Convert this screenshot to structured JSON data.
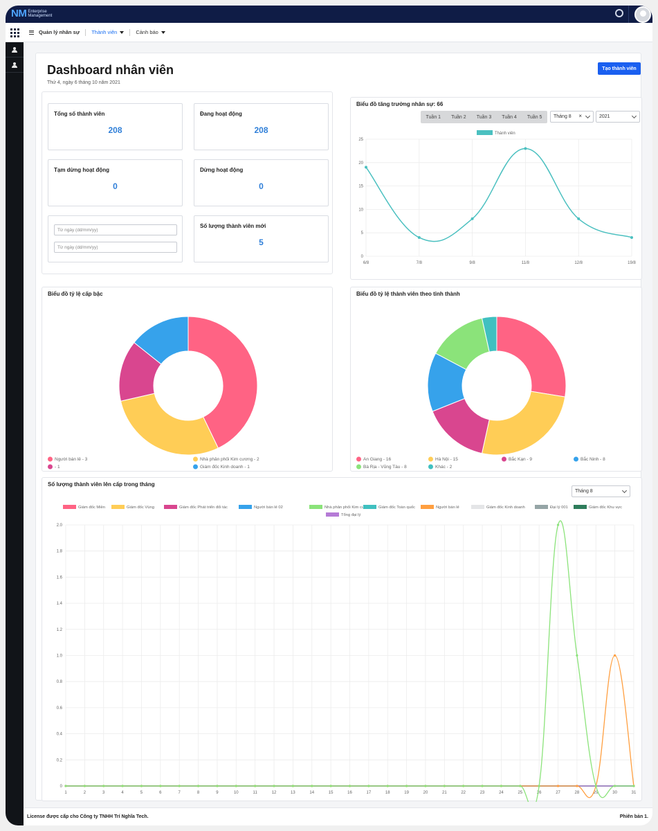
{
  "header": {
    "logo_mark": "NM",
    "logo_line1": "Enterprise",
    "logo_line2": "Management"
  },
  "subnav": {
    "items": [
      {
        "label": "Quản lý nhân sự"
      },
      {
        "label": "Thành viên"
      },
      {
        "label": "Cảnh báo"
      }
    ]
  },
  "page": {
    "title": "Dashboard nhân viên",
    "date": "Thứ 4, ngày 6 tháng 10 năm 2021",
    "create_button": "Tạo thành viên"
  },
  "stats": [
    {
      "label": "Tổng số thành viên",
      "value": "208"
    },
    {
      "label": "Đang hoạt động",
      "value": "208"
    },
    {
      "label": "Tạm dừng hoạt động",
      "value": "0"
    },
    {
      "label": "Dừng hoạt động",
      "value": "0"
    },
    {
      "label": "Số lượng thành viên mới",
      "value": "5"
    }
  ],
  "date_filter": {
    "from_placeholder": "Từ ngày (dd/mm/yy)",
    "to_placeholder": "Từ ngày (dd/mm/yy)"
  },
  "growth": {
    "title": "Biểu đồ tăng trưởng nhân sự: 66",
    "week_tabs": [
      "Tuần 1",
      "Tuần 2",
      "Tuần 3",
      "Tuần 4",
      "Tuần 5"
    ],
    "month_select": "Tháng 8",
    "clear_symbol": "×",
    "year_select": "2021"
  },
  "rank_title": "Biểu đồ tỷ lệ cấp bậc",
  "province_title": "Biểu đồ tỷ lệ thành viên theo tỉnh thành",
  "upgrade": {
    "title": "Số lượng thành viên lên cấp trong tháng",
    "month_select": "Tháng 8"
  },
  "footer": {
    "license": "License được cấp cho Công ty TNHH Trí Nghĩa Tech.",
    "version": "Phiên bản 1."
  },
  "chart_data": [
    {
      "type": "line",
      "title": "Biểu đồ tăng trưởng nhân sự: 66",
      "x": [
        "6/8",
        "7/8",
        "9/8",
        "11/8",
        "12/8",
        "19/8"
      ],
      "series": [
        {
          "name": "Thành viên",
          "values": [
            19,
            4,
            8,
            23,
            8,
            4
          ],
          "color": "#4bc0c0"
        }
      ],
      "ylim": [
        0,
        25
      ],
      "yticks": [
        0,
        5,
        10,
        15,
        20,
        25
      ],
      "grid": true,
      "legend": "top"
    },
    {
      "type": "pie",
      "title": "Biểu đồ tỷ lệ cấp bậc",
      "slices": [
        {
          "label": "Người bán lẻ - 3",
          "value": 3,
          "color": "#ff6384"
        },
        {
          "label": "Nhà phân phối Kim cương - 2",
          "value": 2,
          "color": "#ffcd56"
        },
        {
          "label": " - 1",
          "value": 1,
          "color": "#d9468f"
        },
        {
          "label": "Giám đốc Kinh doanh - 1",
          "value": 1,
          "color": "#36a2eb"
        }
      ],
      "legend": "bottom"
    },
    {
      "type": "pie",
      "title": "Biểu đồ tỷ lệ thành viên theo tỉnh thành",
      "slices": [
        {
          "label": "An Giang - 16",
          "value": 16,
          "color": "#ff6384"
        },
        {
          "label": "Hà Nội - 15",
          "value": 15,
          "color": "#ffcd56"
        },
        {
          "label": "Bắc Kạn - 9",
          "value": 9,
          "color": "#d9468f"
        },
        {
          "label": "Bắc Ninh - 8",
          "value": 8,
          "color": "#36a2eb"
        },
        {
          "label": "Bà Rịa - Vũng Tàu - 8",
          "value": 8,
          "color": "#8be37a"
        },
        {
          "label": "Khác - 2",
          "value": 2,
          "color": "#40c0c0"
        }
      ],
      "legend": "bottom"
    },
    {
      "type": "line",
      "title": "Số lượng thành viên lên cấp trong tháng",
      "x": [
        1,
        2,
        3,
        4,
        5,
        6,
        7,
        8,
        9,
        10,
        11,
        12,
        13,
        14,
        15,
        16,
        17,
        18,
        19,
        20,
        21,
        22,
        23,
        24,
        25,
        26,
        27,
        28,
        29,
        30,
        31
      ],
      "ylim": [
        0,
        2.0
      ],
      "yticks": [
        "0",
        "0.2",
        "0.4",
        "0.6",
        "0.8",
        "1.0",
        "1.2",
        "1.4",
        "1.6",
        "1.8",
        "2.0"
      ],
      "series": [
        {
          "name": "Giám đốc Miền",
          "color": "#ff6384",
          "values": [
            0,
            0,
            0,
            0,
            0,
            0,
            0,
            0,
            0,
            0,
            0,
            0,
            0,
            0,
            0,
            0,
            0,
            0,
            0,
            0,
            0,
            0,
            0,
            0,
            0,
            0,
            0,
            0,
            0,
            0,
            0
          ]
        },
        {
          "name": "Giám đốc Vùng",
          "color": "#ffcd56",
          "values": [
            0,
            0,
            0,
            0,
            0,
            0,
            0,
            0,
            0,
            0,
            0,
            0,
            0,
            0,
            0,
            0,
            0,
            0,
            0,
            0,
            0,
            0,
            0,
            0,
            0,
            0,
            0,
            0,
            0,
            0,
            0
          ]
        },
        {
          "name": "Giám đốc Phát triển đối tác",
          "color": "#d9468f",
          "values": [
            0,
            0,
            0,
            0,
            0,
            0,
            0,
            0,
            0,
            0,
            0,
            0,
            0,
            0,
            0,
            0,
            0,
            0,
            0,
            0,
            0,
            0,
            0,
            0,
            0,
            0,
            0,
            0,
            0,
            0,
            0
          ]
        },
        {
          "name": "Người bán lẻ 02",
          "color": "#36a2eb",
          "values": [
            0,
            0,
            0,
            0,
            0,
            0,
            0,
            0,
            0,
            0,
            0,
            0,
            0,
            0,
            0,
            0,
            0,
            0,
            0,
            0,
            0,
            0,
            0,
            0,
            0,
            0,
            0,
            0,
            0,
            0,
            0
          ]
        },
        {
          "name": "Nhà phân phối Kim cương",
          "color": "#8be37a",
          "values": [
            0,
            0,
            0,
            0,
            0,
            0,
            0,
            0,
            0,
            0,
            0,
            0,
            0,
            0,
            0,
            0,
            0,
            0,
            0,
            0,
            0,
            0,
            0,
            0,
            0,
            0,
            2,
            1,
            0,
            0,
            0
          ]
        },
        {
          "name": "Giám đốc Toàn quốc",
          "color": "#40c0c0",
          "values": [
            0,
            0,
            0,
            0,
            0,
            0,
            0,
            0,
            0,
            0,
            0,
            0,
            0,
            0,
            0,
            0,
            0,
            0,
            0,
            0,
            0,
            0,
            0,
            0,
            0,
            0,
            0,
            0,
            0,
            0,
            0
          ]
        },
        {
          "name": "Người bán lẻ",
          "color": "#ff9f40",
          "values": [
            0,
            0,
            0,
            0,
            0,
            0,
            0,
            0,
            0,
            0,
            0,
            0,
            0,
            0,
            0,
            0,
            0,
            0,
            0,
            0,
            0,
            0,
            0,
            0,
            0,
            0,
            0,
            0,
            0,
            1,
            0
          ]
        },
        {
          "name": "Giám đốc Kinh doanh",
          "color": "#e4e5e7",
          "values": [
            0,
            0,
            0,
            0,
            0,
            0,
            0,
            0,
            0,
            0,
            0,
            0,
            0,
            0,
            0,
            0,
            0,
            0,
            0,
            0,
            0,
            0,
            0,
            0,
            0,
            0,
            0,
            0,
            0,
            0,
            0
          ]
        },
        {
          "name": "Đại lý 001",
          "color": "#95a5a6",
          "values": [
            0,
            0,
            0,
            0,
            0,
            0,
            0,
            0,
            0,
            0,
            0,
            0,
            0,
            0,
            0,
            0,
            0,
            0,
            0,
            0,
            0,
            0,
            0,
            0,
            0,
            0,
            0,
            0,
            0,
            0,
            0
          ]
        },
        {
          "name": "Giám đốc Khu vực",
          "color": "#2e7d5b",
          "values": [
            0,
            0,
            0,
            0,
            0,
            0,
            0,
            0,
            0,
            0,
            0,
            0,
            0,
            0,
            0,
            0,
            0,
            0,
            0,
            0,
            0,
            0,
            0,
            0,
            0,
            0,
            0,
            0,
            0,
            0,
            0
          ]
        },
        {
          "name": "Tổng đại lý",
          "color": "#b57bd6",
          "values": [
            0,
            0,
            0,
            0,
            0,
            0,
            0,
            0,
            0,
            0,
            0,
            0,
            0,
            0,
            0,
            0,
            0,
            0,
            0,
            0,
            0,
            0,
            0,
            0,
            0,
            0,
            0,
            0,
            0,
            0,
            0
          ]
        }
      ],
      "grid": true,
      "legend": "top"
    }
  ]
}
